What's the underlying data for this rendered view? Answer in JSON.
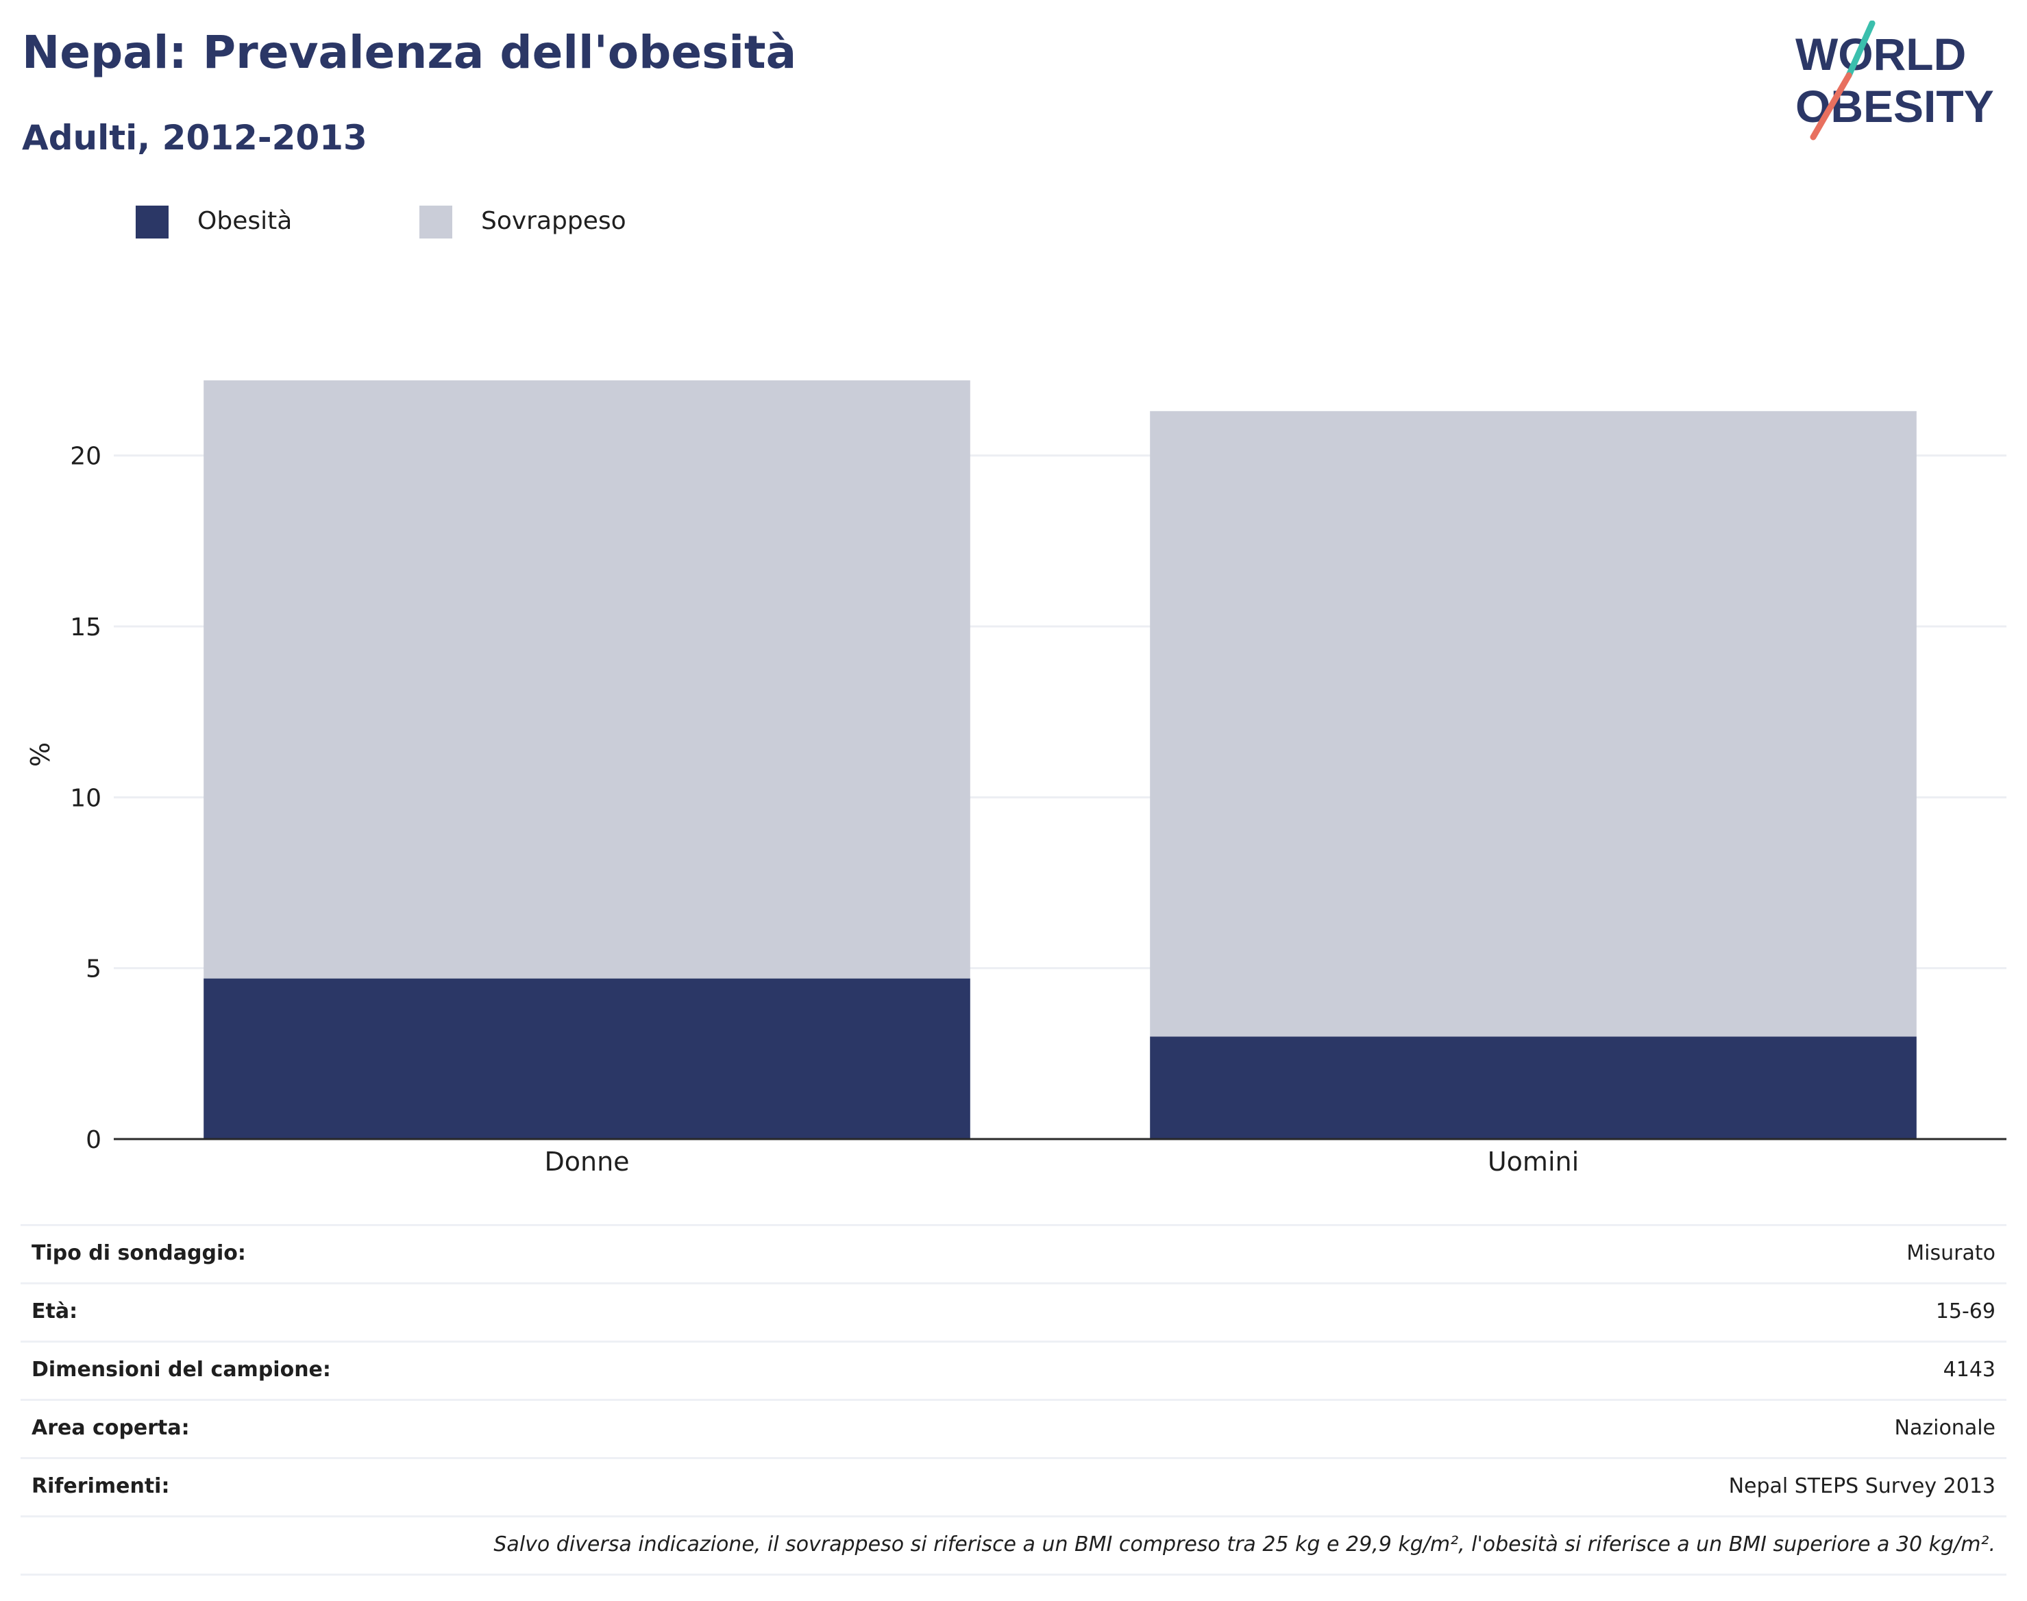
{
  "header": {
    "title": "Nepal: Prevalenza dell'obesità",
    "subtitle": "Adulti, 2012-2013"
  },
  "logo": {
    "line1": "WORLD",
    "line2": "OBESITY",
    "text_color": "#2b3766",
    "slash_top_color": "#3bbfad",
    "slash_bottom_color": "#e8705f"
  },
  "colors": {
    "obesity": "#2b3766",
    "overweight": "#cacdd8",
    "grid": "#eceef3",
    "axis": "#2a2a2a"
  },
  "chart_data": {
    "type": "bar",
    "stacked": true,
    "categories": [
      "Donne",
      "Uomini"
    ],
    "series": [
      {
        "name": "Obesità",
        "values": [
          4.7,
          3.0
        ]
      },
      {
        "name": "Sovrappeso",
        "values": [
          17.5,
          18.3
        ]
      }
    ],
    "title": "Nepal: Prevalenza dell'obesità",
    "subtitle": "Adulti, 2012-2013",
    "xlabel": "",
    "ylabel": "%",
    "ylim": [
      0,
      22.5
    ],
    "yticks": [
      0,
      5,
      10,
      15,
      20
    ],
    "grid": true,
    "legend_position": "top-left"
  },
  "info": {
    "rows": [
      {
        "label": "Tipo di sondaggio:",
        "value": "Misurato"
      },
      {
        "label": "Età:",
        "value": "15-69"
      },
      {
        "label": "Dimensioni del campione:",
        "value": "4143"
      },
      {
        "label": "Area coperta:",
        "value": "Nazionale"
      },
      {
        "label": "Riferimenti:",
        "value": "Nepal STEPS Survey 2013"
      }
    ],
    "note": "Salvo diversa indicazione, il sovrappeso si riferisce a un BMI compreso tra 25 kg e 29,9 kg/m², l'obesità si riferisce a un BMI superiore a 30 kg/m²."
  }
}
